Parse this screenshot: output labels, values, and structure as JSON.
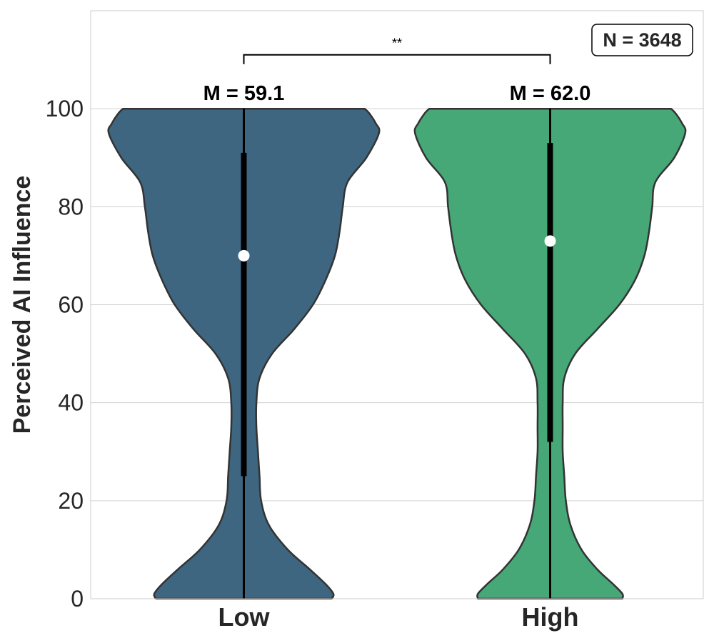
{
  "chart_data": {
    "type": "violin",
    "ylabel": "Perceived AI Influence",
    "xlabel": "",
    "ylim": [
      0,
      120
    ],
    "yticks": [
      "0",
      "20",
      "40",
      "60",
      "80",
      "100"
    ],
    "grid": true,
    "categories": [
      "Low",
      "High"
    ],
    "groups": [
      {
        "category": "Low",
        "color": "#3e6680",
        "mean_label": "M = 59.1",
        "median": 70,
        "q1": 25,
        "q3": 91,
        "whisker_low": 0,
        "whisker_high": 100,
        "density_profile": {
          "y": [
            0,
            1,
            3,
            6,
            10,
            15,
            20,
            25,
            30,
            35,
            40,
            45,
            50,
            55,
            60,
            65,
            70,
            75,
            80,
            85,
            90,
            95,
            97,
            99,
            100
          ],
          "width": [
            0.56,
            0.57,
            0.52,
            0.42,
            0.28,
            0.16,
            0.11,
            0.1,
            0.09,
            0.08,
            0.08,
            0.1,
            0.18,
            0.32,
            0.44,
            0.52,
            0.58,
            0.61,
            0.63,
            0.66,
            0.78,
            0.86,
            0.84,
            0.8,
            0.77
          ]
        }
      },
      {
        "category": "High",
        "color": "#46a876",
        "mean_label": "M = 62.0",
        "median": 73,
        "q1": 32,
        "q3": 93,
        "whisker_low": 0,
        "whisker_high": 100,
        "density_profile": {
          "y": [
            0,
            1,
            3,
            6,
            10,
            15,
            20,
            25,
            30,
            35,
            40,
            45,
            50,
            55,
            60,
            65,
            70,
            75,
            80,
            85,
            90,
            95,
            97,
            99,
            100
          ],
          "width": [
            0.46,
            0.46,
            0.4,
            0.3,
            0.2,
            0.13,
            0.1,
            0.09,
            0.08,
            0.08,
            0.08,
            0.09,
            0.16,
            0.3,
            0.44,
            0.54,
            0.6,
            0.63,
            0.65,
            0.67,
            0.79,
            0.86,
            0.84,
            0.8,
            0.77
          ]
        }
      }
    ],
    "significance": {
      "label": "**",
      "between": [
        "Low",
        "High"
      ],
      "y": 111
    },
    "annotation": "N = 3648"
  }
}
